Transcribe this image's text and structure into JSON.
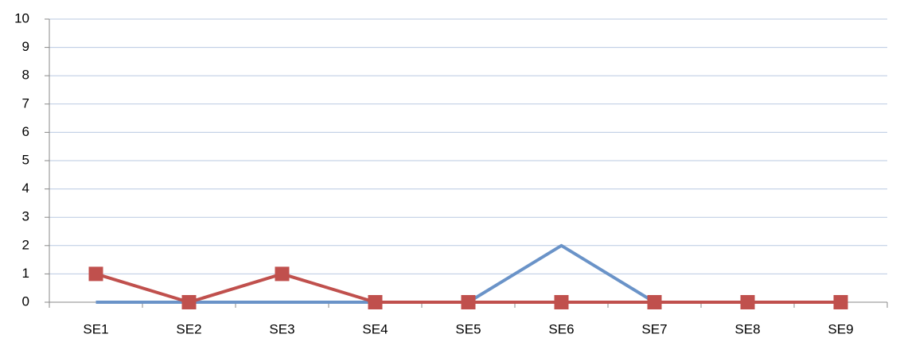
{
  "chart_data": {
    "type": "line",
    "categories": [
      "SE1",
      "SE2",
      "SE3",
      "SE4",
      "SE5",
      "SE6",
      "SE7",
      "SE8",
      "SE9"
    ],
    "series": [
      {
        "color": "#6a93c8",
        "marker": "none",
        "values": [
          0,
          0,
          0,
          0,
          0,
          2,
          0,
          0,
          0
        ]
      },
      {
        "color": "#c0504d",
        "marker": "square",
        "values": [
          1,
          0,
          1,
          0,
          0,
          0,
          0,
          0,
          0
        ]
      }
    ],
    "ylim": [
      0,
      10
    ],
    "yticks": [
      0,
      1,
      2,
      3,
      4,
      5,
      6,
      7,
      8,
      9,
      10
    ],
    "grid": true
  }
}
